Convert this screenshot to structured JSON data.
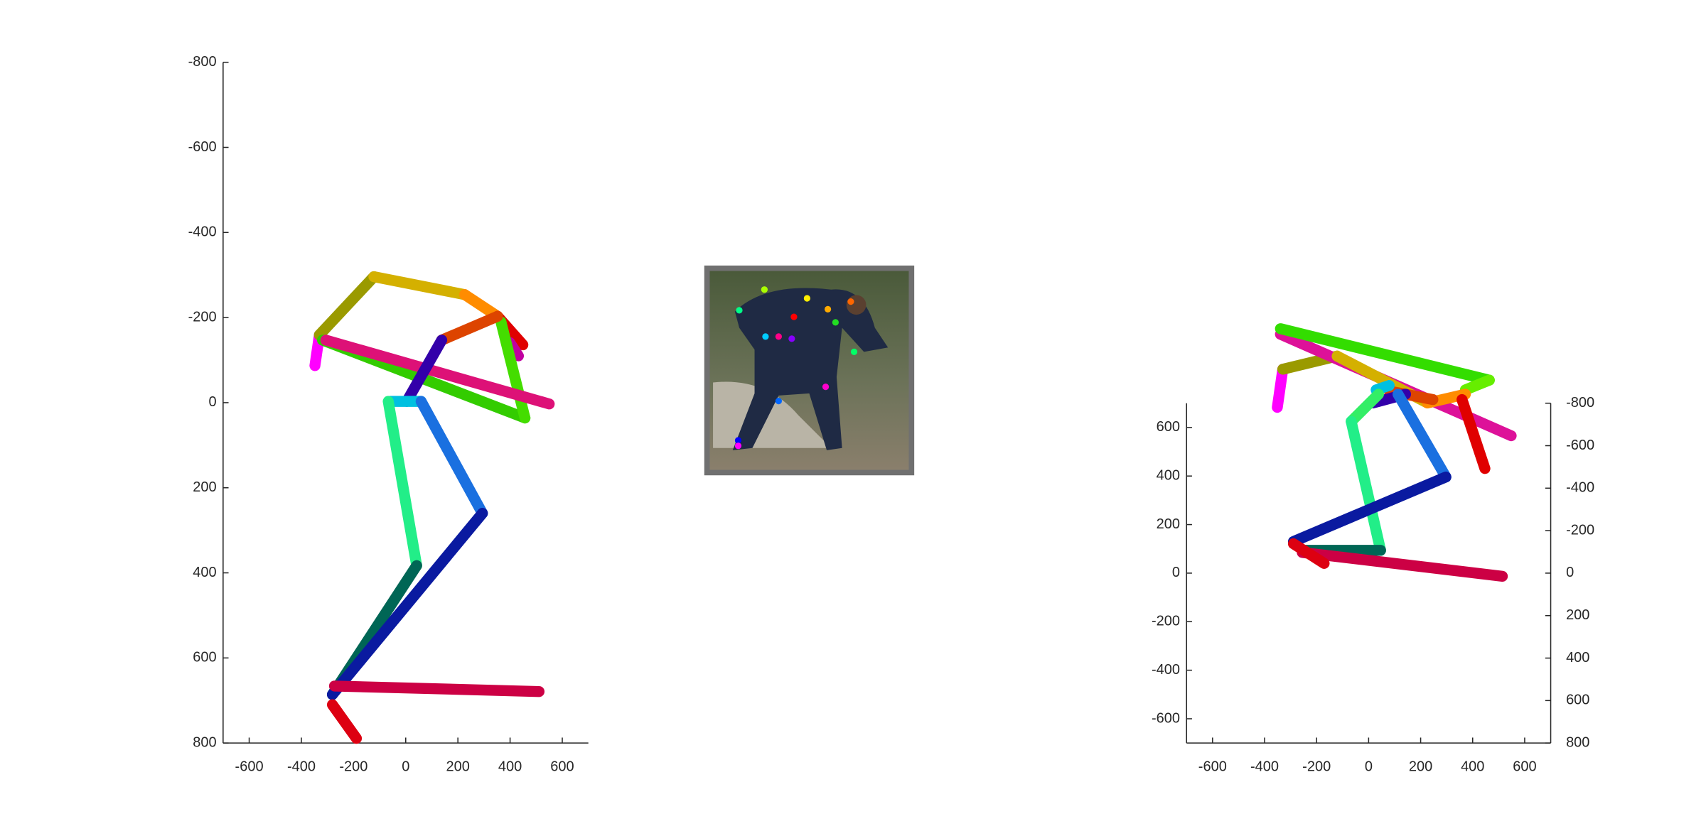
{
  "chart_data": [
    {
      "type": "line",
      "xlim": [
        -700,
        700
      ],
      "xticks": [
        -600,
        -400,
        -200,
        0,
        200,
        400,
        600
      ],
      "ylim": [
        800,
        -800
      ],
      "yticks": [
        -800,
        -600,
        -400,
        -200,
        0,
        200,
        400,
        600,
        800
      ],
      "series": [
        {
          "color": "#ff00ff",
          "x": [
            -348,
            -331
          ],
          "values": [
            -87,
            -159
          ]
        },
        {
          "color": "#9a9a00",
          "x": [
            -331,
            -122
          ],
          "values": [
            -159,
            -296
          ]
        },
        {
          "color": "#d4b000",
          "x": [
            -122,
            226
          ],
          "values": [
            -296,
            -254
          ]
        },
        {
          "color": "#ff8c00",
          "x": [
            226,
            352
          ],
          "values": [
            -254,
            -203
          ]
        },
        {
          "color": "#e00000",
          "x": [
            352,
            449
          ],
          "values": [
            -203,
            -136
          ]
        },
        {
          "color": "#c000a0",
          "x": [
            399,
            432
          ],
          "values": [
            -141,
            -110
          ]
        },
        {
          "color": "#33cc00",
          "x": [
            -319,
            457
          ],
          "values": [
            -147,
            36
          ]
        },
        {
          "color": "#44dd00",
          "x": [
            365,
            457
          ],
          "values": [
            -190,
            36
          ]
        },
        {
          "color": "#dd1177",
          "x": [
            -306,
            550
          ],
          "values": [
            -147,
            3
          ]
        },
        {
          "color": "#dd4400",
          "x": [
            138,
            352
          ],
          "values": [
            -147,
            -203
          ]
        },
        {
          "color": "#3300aa",
          "x": [
            138,
            4
          ],
          "values": [
            -147,
            -3
          ]
        },
        {
          "color": "#00c0e0",
          "x": [
            -59,
            59
          ],
          "values": [
            -3,
            -3
          ]
        },
        {
          "color": "#1a70e0",
          "x": [
            59,
            294
          ],
          "values": [
            -3,
            260
          ]
        },
        {
          "color": "#22ee88",
          "x": [
            -67,
            42
          ],
          "values": [
            -3,
            383
          ]
        },
        {
          "color": "#006655",
          "x": [
            42,
            -281
          ],
          "values": [
            383,
            686
          ]
        },
        {
          "color": "#0a1aa0",
          "x": [
            294,
            -281
          ],
          "values": [
            260,
            686
          ]
        },
        {
          "color": "#cc0044",
          "x": [
            -273,
            511
          ],
          "values": [
            666,
            679
          ]
        },
        {
          "color": "#dd0011",
          "x": [
            -281,
            -189
          ],
          "values": [
            710,
            789
          ]
        }
      ]
    },
    {
      "type": "line",
      "xlim": [
        -700,
        700
      ],
      "xticks": [
        -600,
        -400,
        -200,
        0,
        200,
        400,
        600
      ],
      "ylim": [
        -700,
        700
      ],
      "yticks": [
        -600,
        -400,
        -200,
        0,
        200,
        400,
        600
      ],
      "y2lim": [
        800,
        -800
      ],
      "y2ticks": [
        -800,
        -600,
        -400,
        -200,
        0,
        200,
        400,
        600,
        800
      ],
      "series": [
        {
          "color": "#ff00ff",
          "x": [
            -351,
            -330
          ],
          "values": [
            683,
            840
          ]
        },
        {
          "color": "#9a9a00",
          "x": [
            -330,
            -121
          ],
          "values": [
            840,
            894
          ]
        },
        {
          "color": "#dd1199",
          "x": [
            -339,
            548
          ],
          "values": [
            984,
            566
          ]
        },
        {
          "color": "#33dd00",
          "x": [
            -339,
            464
          ],
          "values": [
            1007,
            795
          ]
        },
        {
          "color": "#66ee00",
          "x": [
            372,
            464
          ],
          "values": [
            755,
            795
          ]
        },
        {
          "color": "#d4b000",
          "x": [
            -121,
            226
          ],
          "values": [
            894,
            701
          ]
        },
        {
          "color": "#ff8c00",
          "x": [
            226,
            372
          ],
          "values": [
            701,
            737
          ]
        },
        {
          "color": "#e00000",
          "x": [
            359,
            447
          ],
          "values": [
            715,
            431
          ]
        },
        {
          "color": "#dd4400",
          "x": [
            79,
            247
          ],
          "values": [
            750,
            715
          ]
        },
        {
          "color": "#3300aa",
          "x": [
            17,
            142
          ],
          "values": [
            701,
            737
          ]
        },
        {
          "color": "#00c0e0",
          "x": [
            29,
            79
          ],
          "values": [
            755,
            773
          ]
        },
        {
          "color": "#1a70e0",
          "x": [
            113,
            297
          ],
          "values": [
            737,
            396
          ]
        },
        {
          "color": "#33ee66",
          "x": [
            -67,
            38
          ],
          "values": [
            625,
            737
          ]
        },
        {
          "color": "#22ee88",
          "x": [
            -67,
            46
          ],
          "values": [
            625,
            94
          ]
        },
        {
          "color": "#0a1aa0",
          "x": [
            -289,
            297
          ],
          "values": [
            130,
            396
          ]
        },
        {
          "color": "#006655",
          "x": [
            -255,
            46
          ],
          "values": [
            94,
            94
          ]
        },
        {
          "color": "#cc0044",
          "x": [
            -255,
            514
          ],
          "values": [
            85,
            -13
          ]
        },
        {
          "color": "#dd0011",
          "x": [
            -289,
            -171
          ],
          "values": [
            121,
            40
          ]
        }
      ]
    }
  ]
}
